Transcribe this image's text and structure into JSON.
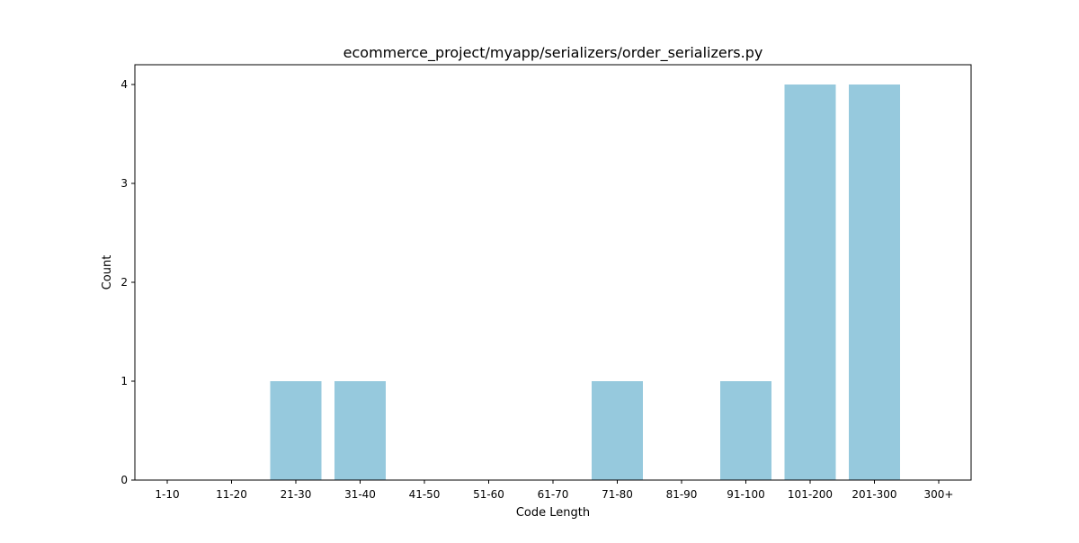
{
  "chart_data": {
    "type": "bar",
    "title": "ecommerce_project/myapp/serializers/order_serializers.py",
    "xlabel": "Code Length",
    "ylabel": "Count",
    "categories": [
      "1-10",
      "11-20",
      "21-30",
      "31-40",
      "41-50",
      "51-60",
      "61-70",
      "71-80",
      "81-90",
      "91-100",
      "101-200",
      "201-300",
      "300+"
    ],
    "values": [
      0,
      0,
      1,
      1,
      0,
      0,
      0,
      1,
      0,
      1,
      4,
      4,
      0
    ],
    "ylim": [
      0,
      4.2
    ],
    "yticks": [
      0,
      1,
      2,
      3,
      4
    ],
    "grid": false,
    "bar_color": "#96c9dd"
  }
}
